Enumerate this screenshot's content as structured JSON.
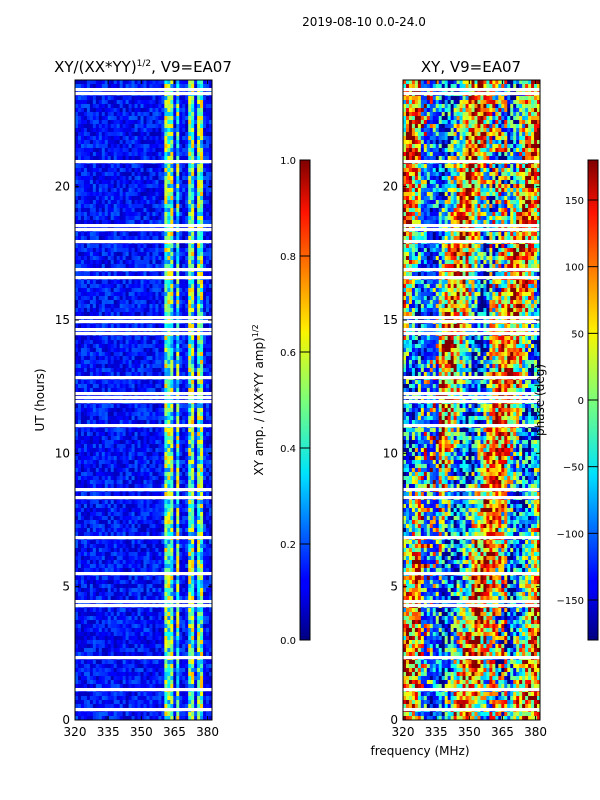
{
  "figure": {
    "suptitle": "2019-08-10 0.0-24.0",
    "xlabel": "frequency (MHz)",
    "ylabel": "UT (hours)"
  },
  "chart_data": [
    {
      "type": "heatmap",
      "title_base": "XY/(XX*YY)",
      "title_exp": "1/2",
      "title_suffix": ", V9=EA07",
      "xlim": [
        320,
        382
      ],
      "ylim": [
        0,
        24
      ],
      "xticks": [
        320,
        335,
        350,
        365,
        380
      ],
      "yticks": [
        0,
        5,
        10,
        15,
        20
      ],
      "colorbar": {
        "label_base": "XY amp. / (XX*YY amp)",
        "label_exp": "1/2",
        "range": [
          0.0,
          1.0
        ],
        "ticks": [
          "0.0",
          "0.2",
          "0.4",
          "0.6",
          "0.8",
          "1.0"
        ],
        "colormap": "jet"
      }
    },
    {
      "type": "heatmap",
      "title": "XY, V9=EA07",
      "xlim": [
        320,
        382
      ],
      "ylim": [
        0,
        24
      ],
      "xticks": [
        320,
        335,
        350,
        365,
        380
      ],
      "yticks": [
        0,
        5,
        10,
        15,
        20
      ],
      "colorbar": {
        "label": "phase (deg)",
        "range": [
          -180,
          180
        ],
        "ticks": [
          "150",
          "100",
          "50",
          "0",
          "−50",
          "−100",
          "−150"
        ],
        "colormap": "jet"
      }
    }
  ],
  "colors": {
    "axis": "#000000",
    "background": "#ffffff",
    "flag": "#ffffff"
  }
}
